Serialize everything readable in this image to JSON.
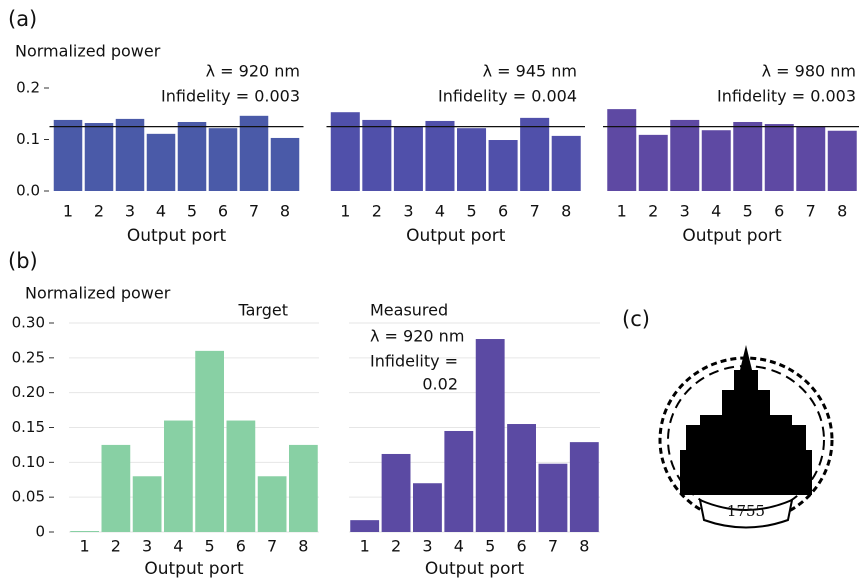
{
  "chart_data": [
    {
      "type": "bar",
      "ylabel": "Normalized power",
      "categories": [
        "1",
        "2",
        "3",
        "4",
        "5",
        "6",
        "7",
        "8"
      ],
      "values": [
        0.138,
        0.132,
        0.14,
        0.111,
        0.134,
        0.122,
        0.146,
        0.103
      ],
      "color": "#4a5aa8",
      "ylim": [
        0,
        0.2
      ],
      "yticks": [
        {
          "value": 0,
          "label": "0.0"
        },
        0.1,
        0.2
      ],
      "reference_line": 0.125,
      "annotations": [
        "λ = 920 nm",
        "Infidelity = 0.003"
      ],
      "xlabel": "Output port"
    },
    {
      "type": "bar",
      "categories": [
        "1",
        "2",
        "3",
        "4",
        "5",
        "6",
        "7",
        "8"
      ],
      "values": [
        0.153,
        0.138,
        0.126,
        0.136,
        0.122,
        0.099,
        0.142,
        0.107
      ],
      "color": "#5050aa",
      "ylim": [
        0,
        0.2
      ],
      "reference_line": 0.125,
      "annotations": [
        "λ = 945 nm",
        "Infidelity = 0.004"
      ],
      "xlabel": "Output port"
    },
    {
      "type": "bar",
      "categories": [
        "1",
        "2",
        "3",
        "4",
        "5",
        "6",
        "7",
        "8"
      ],
      "values": [
        0.159,
        0.109,
        0.138,
        0.118,
        0.134,
        0.13,
        0.126,
        0.117
      ],
      "color": "#5e49a3",
      "ylim": [
        0,
        0.2
      ],
      "reference_line": 0.125,
      "annotations": [
        "λ = 980 nm",
        "Infidelity = 0.003"
      ],
      "xlabel": "Output port"
    },
    {
      "type": "bar",
      "ylabel": "Normalized power",
      "title": "Target",
      "categories": [
        "1",
        "2",
        "3",
        "4",
        "5",
        "6",
        "7",
        "8"
      ],
      "values": [
        0,
        0.125,
        0.08,
        0.16,
        0.26,
        0.16,
        0.08,
        0.125
      ],
      "color": "#88d0a4",
      "ylim": [
        0,
        0.3
      ],
      "yticks": [
        0,
        0.05,
        {
          "value": 0.1,
          "label": "0.10"
        },
        0.15,
        {
          "value": 0.2,
          "label": "0.20"
        },
        0.25,
        {
          "value": 0.3,
          "label": "0.30"
        }
      ],
      "grid": true,
      "xlabel": "Output port"
    },
    {
      "type": "bar",
      "title": "Measured",
      "categories": [
        "1",
        "2",
        "3",
        "4",
        "5",
        "6",
        "7",
        "8"
      ],
      "values": [
        0.017,
        0.112,
        0.07,
        0.145,
        0.277,
        0.155,
        0.098,
        0.129
      ],
      "color": "#5b4aa3",
      "ylim": [
        0,
        0.3
      ],
      "grid": true,
      "annotations": [
        "λ = 920 nm",
        "Infidelity =",
        "0.02"
      ],
      "xlabel": "Output port"
    }
  ],
  "panel_labels": [
    "(a)",
    "(b)",
    "(c)"
  ],
  "logo": {
    "text": "1755"
  }
}
